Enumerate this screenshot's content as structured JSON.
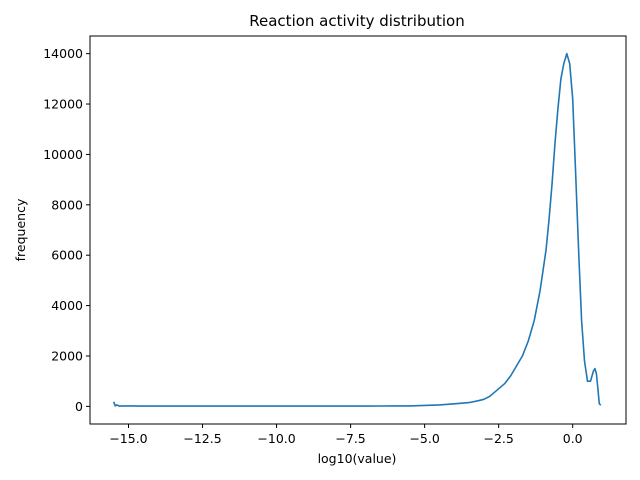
{
  "chart_data": {
    "type": "line",
    "title": "Reaction activity distribution",
    "xlabel": "log10(value)",
    "ylabel": "frequency",
    "xlim": [
      -16.3,
      1.8
    ],
    "ylim": [
      -700,
      14700
    ],
    "xticks": [
      -15.0,
      -12.5,
      -10.0,
      -7.5,
      -5.0,
      -2.5,
      0.0
    ],
    "xtick_labels": [
      "−15.0",
      "−12.5",
      "−10.0",
      "−7.5",
      "−5.0",
      "−2.5",
      "0.0"
    ],
    "yticks": [
      0,
      2000,
      4000,
      6000,
      8000,
      10000,
      12000,
      14000
    ],
    "ytick_labels": [
      "0",
      "2000",
      "4000",
      "6000",
      "8000",
      "10000",
      "12000",
      "14000"
    ],
    "grid": false,
    "series": [
      {
        "color": "#1f77b4",
        "x": [
          -15.5,
          -15.45,
          -15.4,
          -15.3,
          -15.0,
          -14.5,
          -14.0,
          -13.0,
          -12.0,
          -11.0,
          -10.0,
          -9.0,
          -8.0,
          -7.0,
          -6.0,
          -5.5,
          -5.0,
          -4.5,
          -4.0,
          -3.5,
          -3.2,
          -3.0,
          -2.8,
          -2.5,
          -2.3,
          -2.1,
          -1.9,
          -1.7,
          -1.5,
          -1.3,
          -1.1,
          -0.9,
          -0.8,
          -0.7,
          -0.6,
          -0.5,
          -0.4,
          -0.3,
          -0.2,
          -0.1,
          0.0,
          0.1,
          0.2,
          0.3,
          0.4,
          0.5,
          0.6,
          0.7,
          0.75,
          0.8,
          0.85,
          0.9,
          0.95
        ],
        "y": [
          180,
          20,
          60,
          10,
          20,
          10,
          10,
          10,
          10,
          10,
          10,
          10,
          10,
          10,
          20,
          20,
          40,
          60,
          100,
          150,
          220,
          280,
          400,
          700,
          900,
          1200,
          1600,
          2000,
          2600,
          3400,
          4600,
          6200,
          7400,
          8800,
          10400,
          11800,
          13000,
          13600,
          14000,
          13600,
          12200,
          9200,
          6200,
          3400,
          1800,
          1000,
          1000,
          1400,
          1500,
          1300,
          700,
          100,
          50
        ]
      }
    ]
  }
}
